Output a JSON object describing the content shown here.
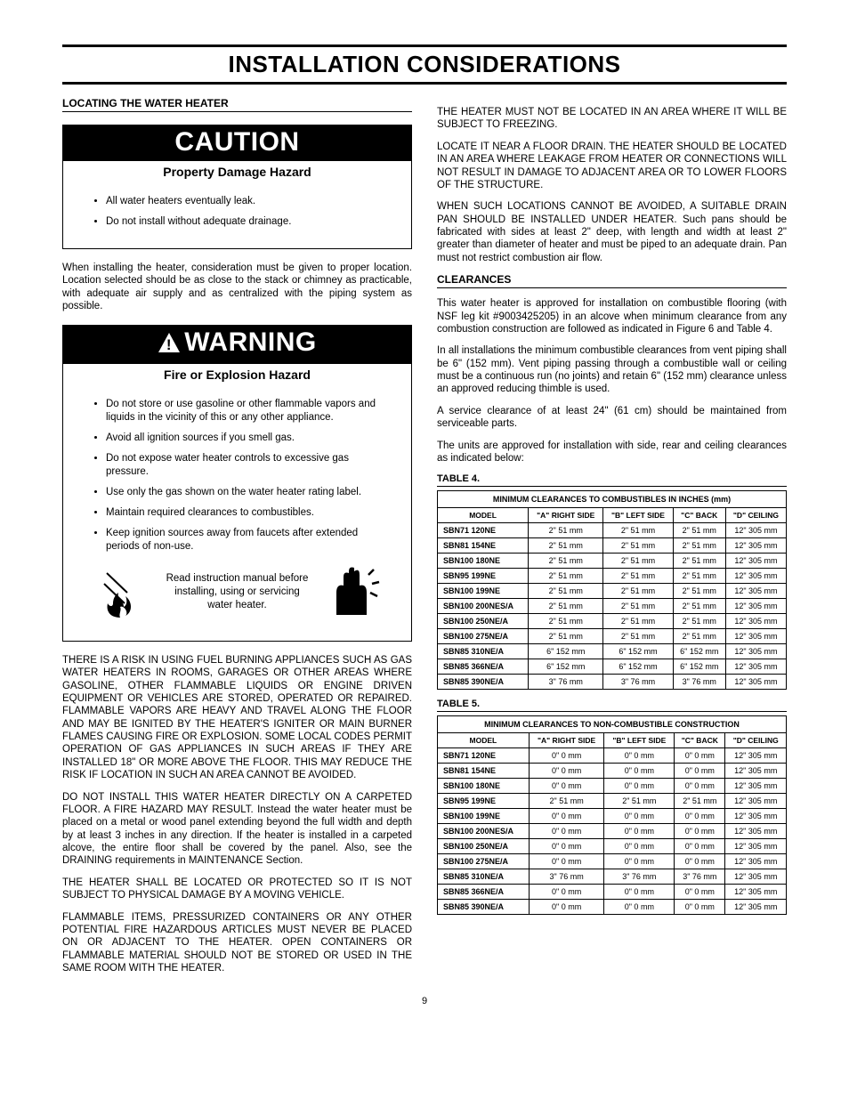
{
  "title": "INSTALLATION CONSIDERATIONS",
  "left": {
    "heading": "LOCATING THE WATER HEATER",
    "caution": {
      "banner": "CAUTION",
      "subtitle": "Property Damage Hazard",
      "items": [
        "All water heaters eventually leak.",
        "Do not install without adequate drainage."
      ]
    },
    "p1": "When installing the heater, consideration must be given to proper location.  Location selected should be as close to the stack or chimney as practicable, with adequate air supply and as centralized with the piping system as possible.",
    "warning": {
      "banner": "WARNING",
      "subtitle": "Fire or Explosion Hazard",
      "items": [
        "Do not store or use gasoline or other flammable vapors and liquids in the vicinity of this or any other appliance.",
        "Avoid all ignition sources if you smell gas.",
        "Do not expose water heater controls to excessive gas pressure.",
        "Use only the gas shown on the water heater rating label.",
        "Maintain required clearances to combustibles.",
        "Keep ignition sources away from faucets after extended periods of non-use."
      ],
      "iconText": "Read instruction manual before installing, using or servicing water heater."
    },
    "p2": "THERE IS A RISK IN USING FUEL BURNING APPLIANCES SUCH AS GAS WATER HEATERS IN ROOMS, GARAGES OR OTHER AREAS WHERE GASOLINE, OTHER FLAMMABLE LIQUIDS OR ENGINE DRIVEN EQUIPMENT OR VEHICLES ARE STORED, OPERATED OR REPAIRED. FLAMMABLE VAPORS ARE HEAVY AND TRAVEL ALONG THE FLOOR AND MAY BE IGNITED BY THE HEATER'S IGNITER OR MAIN BURNER FLAMES CAUSING FIRE OR EXPLOSION. SOME LOCAL CODES PERMIT OPERATION OF GAS APPLIANCES IN SUCH AREAS IF THEY ARE INSTALLED 18\" OR MORE ABOVE THE FLOOR. THIS MAY REDUCE THE RISK IF LOCATION IN SUCH AN AREA CANNOT BE AVOIDED.",
    "p3": "DO NOT INSTALL THIS WATER HEATER DIRECTLY ON A CARPETED FLOOR.  A FIRE HAZARD MAY RESULT. Instead the water heater must be placed on a metal or wood panel extending beyond the full width and depth by at least 3 inches in any direction. If the heater is installed in a carpeted alcove, the entire floor shall be covered by the panel. Also, see the DRAINING requirements in MAINTENANCE Section.",
    "p4": "THE HEATER SHALL BE LOCATED OR PROTECTED SO IT IS NOT SUBJECT TO PHYSICAL DAMAGE BY A MOVING VEHICLE.",
    "p5": "FLAMMABLE ITEMS, PRESSURIZED CONTAINERS OR ANY OTHER POTENTIAL FIRE HAZARDOUS ARTICLES MUST NEVER BE PLACED ON OR ADJACENT TO THE HEATER.  OPEN CONTAINERS OR FLAMMABLE MATERIAL SHOULD NOT BE STORED OR USED IN THE SAME ROOM WITH THE HEATER."
  },
  "right": {
    "p1": "THE HEATER MUST NOT BE LOCATED IN AN AREA WHERE IT WILL BE SUBJECT TO FREEZING.",
    "p2": "LOCATE IT NEAR A FLOOR DRAIN. THE HEATER SHOULD BE LOCATED IN AN AREA WHERE LEAKAGE FROM HEATER OR CONNECTIONS WILL NOT RESULT IN DAMAGE TO ADJACENT AREA OR TO LOWER FLOORS OF THE STRUCTURE.",
    "p3": "WHEN SUCH LOCATIONS CANNOT BE AVOIDED, A SUITABLE DRAIN PAN SHOULD BE INSTALLED UNDER HEATER. Such pans should be fabricated with sides at least 2\" deep, with length and width at least 2\" greater than diameter of heater and must be piped to an adequate drain. Pan must not restrict combustion air flow.",
    "clearances_h": "CLEARANCES",
    "p4": "This water heater is approved for installation on combustible flooring (with NSF leg kit #9003425205) in an alcove when minimum clearance from any combustion construction are followed as indicated in Figure 6 and Table 4.",
    "p5": "In all installations the minimum combustible clearances from vent piping shall be 6\" (152 mm). Vent piping passing through a combustible wall or ceiling must be a continuous run (no joints) and retain 6\" (152 mm) clearance unless an approved reducing thimble is used.",
    "p6": "A service clearance of at least 24\" (61 cm) should be maintained from serviceable parts.",
    "p7": "The units are approved for installation with side, rear and ceiling clearances as indicated below:",
    "table4_label": "TABLE 4.",
    "table4": {
      "caption": "MINIMUM CLEARANCES TO COMBUSTIBLES IN INCHES (mm)",
      "headers": [
        "MODEL",
        "\"A\" RIGHT SIDE",
        "\"B\" LEFT SIDE",
        "\"C\" BACK",
        "\"D\" CEILING"
      ],
      "rows": [
        [
          "SBN71 120NE",
          "2\" 51 mm",
          "2\" 51 mm",
          "2\" 51 mm",
          "12\" 305 mm"
        ],
        [
          "SBN81 154NE",
          "2\" 51 mm",
          "2\" 51 mm",
          "2\" 51 mm",
          "12\" 305 mm"
        ],
        [
          "SBN100 180NE",
          "2\" 51 mm",
          "2\" 51 mm",
          "2\" 51 mm",
          "12\" 305 mm"
        ],
        [
          "SBN95 199NE",
          "2\" 51 mm",
          "2\" 51 mm",
          "2\" 51 mm",
          "12\" 305 mm"
        ],
        [
          "SBN100 199NE",
          "2\" 51 mm",
          "2\" 51 mm",
          "2\" 51 mm",
          "12\" 305 mm"
        ],
        [
          "SBN100 200NES/A",
          "2\" 51 mm",
          "2\" 51 mm",
          "2\" 51 mm",
          "12\" 305 mm"
        ],
        [
          "SBN100 250NE/A",
          "2\" 51 mm",
          "2\" 51 mm",
          "2\" 51 mm",
          "12\" 305 mm"
        ],
        [
          "SBN100 275NE/A",
          "2\" 51 mm",
          "2\" 51 mm",
          "2\" 51 mm",
          "12\" 305 mm"
        ],
        [
          "SBN85 310NE/A",
          "6\" 152 mm",
          "6\" 152 mm",
          "6\" 152 mm",
          "12\" 305 mm"
        ],
        [
          "SBN85 366NE/A",
          "6\" 152 mm",
          "6\" 152 mm",
          "6\" 152 mm",
          "12\" 305 mm"
        ],
        [
          "SBN85 390NE/A",
          "3\" 76 mm",
          "3\" 76 mm",
          "3\" 76 mm",
          "12\" 305 mm"
        ]
      ]
    },
    "table5_label": "TABLE 5.",
    "table5": {
      "caption": "MINIMUM CLEARANCES TO NON-COMBUSTIBLE CONSTRUCTION",
      "headers": [
        "MODEL",
        "\"A\" RIGHT SIDE",
        "\"B\" LEFT SIDE",
        "\"C\" BACK",
        "\"D\" CEILING"
      ],
      "rows": [
        [
          "SBN71 120NE",
          "0\" 0 mm",
          "0\" 0 mm",
          "0\" 0 mm",
          "12\" 305 mm"
        ],
        [
          "SBN81 154NE",
          "0\" 0 mm",
          "0\" 0 mm",
          "0\" 0 mm",
          "12\" 305 mm"
        ],
        [
          "SBN100 180NE",
          "0\" 0 mm",
          "0\" 0 mm",
          "0\" 0 mm",
          "12\" 305 mm"
        ],
        [
          "SBN95 199NE",
          "2\" 51 mm",
          "2\" 51 mm",
          "2\" 51 mm",
          "12\" 305 mm"
        ],
        [
          "SBN100 199NE",
          "0\" 0 mm",
          "0\" 0 mm",
          "0\" 0 mm",
          "12\" 305 mm"
        ],
        [
          "SBN100 200NES/A",
          "0\" 0 mm",
          "0\" 0 mm",
          "0\" 0 mm",
          "12\" 305 mm"
        ],
        [
          "SBN100 250NE/A",
          "0\" 0 mm",
          "0\" 0 mm",
          "0\" 0 mm",
          "12\" 305 mm"
        ],
        [
          "SBN100 275NE/A",
          "0\" 0 mm",
          "0\" 0 mm",
          "0\" 0 mm",
          "12\" 305 mm"
        ],
        [
          "SBN85 310NE/A",
          "3\" 76 mm",
          "3\" 76 mm",
          "3\" 76 mm",
          "12\" 305 mm"
        ],
        [
          "SBN85 366NE/A",
          "0\" 0 mm",
          "0\" 0 mm",
          "0\" 0 mm",
          "12\" 305 mm"
        ],
        [
          "SBN85 390NE/A",
          "0\" 0 mm",
          "0\" 0 mm",
          "0\" 0 mm",
          "12\" 305 mm"
        ]
      ]
    }
  },
  "pageNumber": "9"
}
